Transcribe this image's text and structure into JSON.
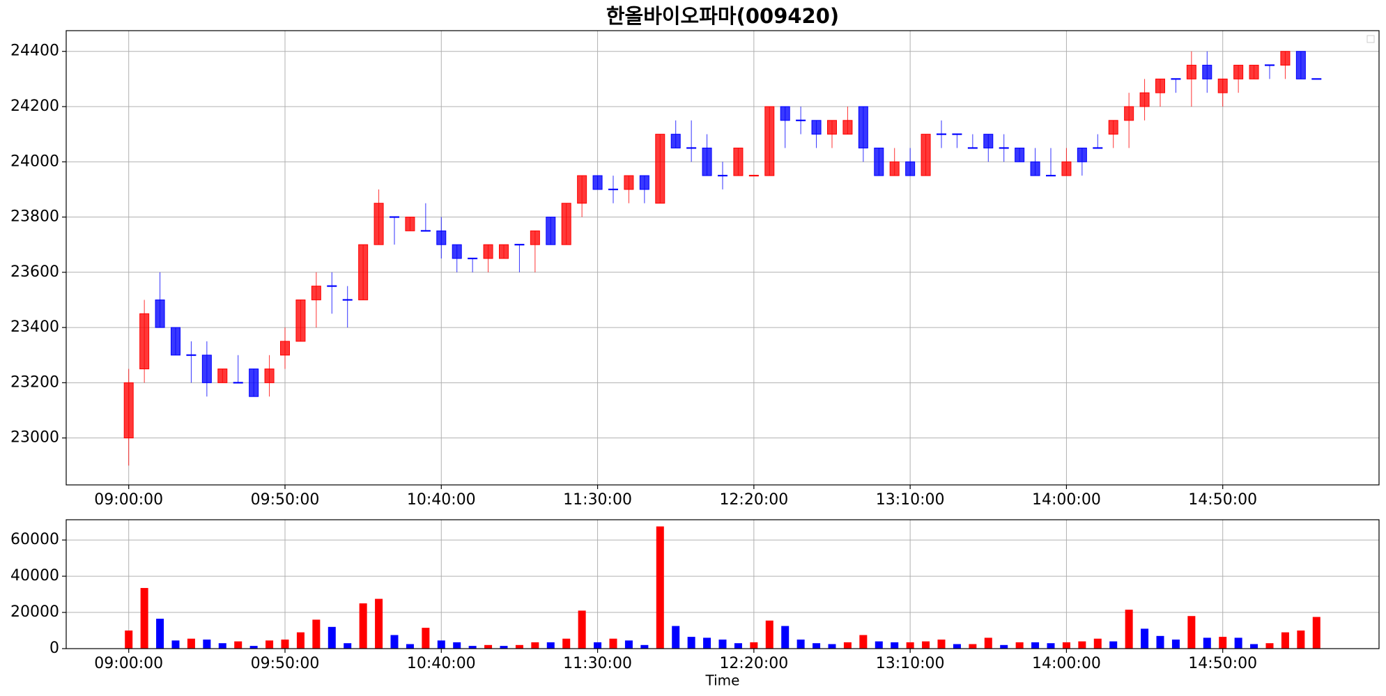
{
  "chart_data": [
    {
      "type": "candlestick",
      "title": "한올바이오파마(009420)",
      "x": [
        "09:00:00",
        "09:05:00",
        "09:10:00",
        "09:15:00",
        "09:20:00",
        "09:25:00",
        "09:30:00",
        "09:35:00",
        "09:40:00",
        "09:45:00",
        "09:50:00",
        "09:55:00",
        "10:00:00",
        "10:05:00",
        "10:10:00",
        "10:15:00",
        "10:20:00",
        "10:25:00",
        "10:30:00",
        "10:35:00",
        "10:40:00",
        "10:45:00",
        "10:50:00",
        "10:55:00",
        "11:00:00",
        "11:05:00",
        "11:10:00",
        "11:15:00",
        "11:20:00",
        "11:25:00",
        "11:30:00",
        "11:35:00",
        "11:40:00",
        "11:45:00",
        "11:50:00",
        "11:55:00",
        "12:00:00",
        "12:05:00",
        "12:10:00",
        "12:15:00",
        "12:20:00",
        "12:25:00",
        "12:30:00",
        "12:35:00",
        "12:40:00",
        "12:45:00",
        "12:50:00",
        "12:55:00",
        "13:00:00",
        "13:05:00",
        "13:10:00",
        "13:15:00",
        "13:20:00",
        "13:25:00",
        "13:30:00",
        "13:35:00",
        "13:40:00",
        "13:45:00",
        "13:50:00",
        "13:55:00",
        "14:00:00",
        "14:05:00",
        "14:10:00",
        "14:15:00",
        "14:20:00",
        "14:25:00",
        "14:30:00",
        "14:35:00",
        "14:40:00",
        "14:45:00",
        "14:50:00",
        "14:55:00",
        "15:00:00",
        "15:05:00",
        "15:10:00",
        "15:15:00",
        "15:20:00"
      ],
      "open": [
        23000,
        23250,
        23500,
        23400,
        23300,
        23300,
        23200,
        23200,
        23250,
        23200,
        23300,
        23350,
        23500,
        23550,
        23500,
        23500,
        23700,
        23800,
        23750,
        23750,
        23750,
        23700,
        23650,
        23650,
        23650,
        23700,
        23700,
        23800,
        23700,
        23850,
        23950,
        23900,
        23900,
        23950,
        23850,
        24100,
        24050,
        24050,
        23950,
        23950,
        23950,
        23950,
        24200,
        24150,
        24150,
        24100,
        24100,
        24200,
        24050,
        23950,
        24000,
        23950,
        24100,
        24100,
        24050,
        24100,
        24050,
        24050,
        24000,
        23950,
        23950,
        24050,
        24050,
        24100,
        24150,
        24200,
        24250,
        24300,
        24300,
        24350,
        24250,
        24300,
        24300,
        24350,
        24350,
        24400,
        24300
      ],
      "high": [
        23250,
        23500,
        23600,
        23400,
        23350,
        23350,
        23250,
        23300,
        23250,
        23300,
        23400,
        23500,
        23600,
        23600,
        23550,
        23700,
        23900,
        23800,
        23800,
        23850,
        23800,
        23700,
        23650,
        23700,
        23700,
        23700,
        23750,
        23800,
        23850,
        23950,
        23950,
        23950,
        23950,
        23950,
        24100,
        24150,
        24150,
        24100,
        24000,
        24050,
        23950,
        24200,
        24200,
        24200,
        24150,
        24150,
        24200,
        24200,
        24050,
        24050,
        24050,
        24100,
        24150,
        24100,
        24100,
        24100,
        24100,
        24050,
        24050,
        24050,
        24050,
        24050,
        24100,
        24150,
        24250,
        24300,
        24300,
        24300,
        24400,
        24400,
        24300,
        24350,
        24350,
        24350,
        24400,
        24400,
        24300
      ],
      "low": [
        22900,
        23200,
        23400,
        23300,
        23200,
        23150,
        23200,
        23200,
        23150,
        23150,
        23250,
        23350,
        23400,
        23450,
        23400,
        23500,
        23700,
        23700,
        23750,
        23750,
        23650,
        23600,
        23600,
        23600,
        23650,
        23600,
        23600,
        23700,
        23700,
        23800,
        23900,
        23850,
        23850,
        23850,
        23850,
        24050,
        24000,
        23950,
        23900,
        23950,
        23950,
        23950,
        24050,
        24100,
        24050,
        24050,
        24100,
        24000,
        23950,
        23950,
        23950,
        23950,
        24050,
        24050,
        24050,
        24000,
        24000,
        24000,
        23950,
        23950,
        23950,
        23950,
        24050,
        24050,
        24050,
        24150,
        24200,
        24250,
        24200,
        24250,
        24200,
        24250,
        24300,
        24300,
        24300,
        24300,
        24300
      ],
      "close": [
        23200,
        23450,
        23400,
        23300,
        23300,
        23200,
        23250,
        23200,
        23150,
        23250,
        23350,
        23500,
        23550,
        23550,
        23500,
        23700,
        23850,
        23800,
        23800,
        23750,
        23700,
        23650,
        23650,
        23700,
        23700,
        23700,
        23750,
        23700,
        23850,
        23950,
        23900,
        23900,
        23950,
        23900,
        24100,
        24050,
        24050,
        23950,
        23950,
        24050,
        23950,
        24200,
        24150,
        24150,
        24100,
        24150,
        24150,
        24050,
        23950,
        24000,
        23950,
        24100,
        24100,
        24100,
        24050,
        24050,
        24050,
        24000,
        23950,
        23950,
        24000,
        24000,
        24050,
        24150,
        24200,
        24250,
        24300,
        24300,
        24350,
        24300,
        24300,
        24350,
        24350,
        24350,
        24400,
        24300,
        24300
      ],
      "colors": [
        "red",
        "red",
        "blue",
        "blue",
        "blue",
        "blue",
        "red",
        "blue",
        "blue",
        "red",
        "red",
        "red",
        "red",
        "blue",
        "blue",
        "red",
        "red",
        "blue",
        "red",
        "blue",
        "blue",
        "blue",
        "blue",
        "red",
        "red",
        "blue",
        "red",
        "blue",
        "red",
        "red",
        "blue",
        "blue",
        "red",
        "blue",
        "red",
        "blue",
        "blue",
        "blue",
        "blue",
        "red",
        "red",
        "red",
        "blue",
        "blue",
        "blue",
        "red",
        "red",
        "blue",
        "blue",
        "red",
        "blue",
        "red",
        "blue",
        "blue",
        "blue",
        "blue",
        "blue",
        "blue",
        "blue",
        "blue",
        "red",
        "blue",
        "blue",
        "red",
        "red",
        "red",
        "red",
        "blue",
        "red",
        "blue",
        "red",
        "red",
        "red",
        "blue",
        "red",
        "blue",
        "blue"
      ],
      "xlim": [
        "08:40:00",
        "15:40:00"
      ],
      "xticks": [
        "09:00:00",
        "09:50:00",
        "10:40:00",
        "11:30:00",
        "12:20:00",
        "13:10:00",
        "14:00:00",
        "14:50:00"
      ],
      "ylim": [
        22830,
        24475
      ],
      "yticks": [
        23000,
        23200,
        23400,
        23600,
        23800,
        24000,
        24200,
        24400
      ],
      "grid": true
    },
    {
      "type": "bar",
      "xlabel": "Time",
      "x": [
        "09:00:00",
        "09:05:00",
        "09:10:00",
        "09:15:00",
        "09:20:00",
        "09:25:00",
        "09:30:00",
        "09:35:00",
        "09:40:00",
        "09:45:00",
        "09:50:00",
        "09:55:00",
        "10:00:00",
        "10:05:00",
        "10:10:00",
        "10:15:00",
        "10:20:00",
        "10:25:00",
        "10:30:00",
        "10:35:00",
        "10:40:00",
        "10:45:00",
        "10:50:00",
        "10:55:00",
        "11:00:00",
        "11:05:00",
        "11:10:00",
        "11:15:00",
        "11:20:00",
        "11:25:00",
        "11:30:00",
        "11:35:00",
        "11:40:00",
        "11:45:00",
        "11:50:00",
        "11:55:00",
        "12:00:00",
        "12:05:00",
        "12:10:00",
        "12:15:00",
        "12:20:00",
        "12:25:00",
        "12:30:00",
        "12:35:00",
        "12:40:00",
        "12:45:00",
        "12:50:00",
        "12:55:00",
        "13:00:00",
        "13:05:00",
        "13:10:00",
        "13:15:00",
        "13:20:00",
        "13:25:00",
        "13:30:00",
        "13:35:00",
        "13:40:00",
        "13:45:00",
        "13:50:00",
        "13:55:00",
        "14:00:00",
        "14:05:00",
        "14:10:00",
        "14:15:00",
        "14:20:00",
        "14:25:00",
        "14:30:00",
        "14:35:00",
        "14:40:00",
        "14:45:00",
        "14:50:00",
        "14:55:00",
        "15:00:00",
        "15:05:00",
        "15:10:00",
        "15:15:00",
        "15:20:00"
      ],
      "values": [
        10000,
        33500,
        16500,
        4500,
        5500,
        5000,
        3000,
        4000,
        1500,
        4500,
        5000,
        9000,
        16000,
        12000,
        3000,
        25000,
        27500,
        7500,
        2500,
        11500,
        4500,
        3500,
        1500,
        2000,
        1500,
        2000,
        3500,
        3500,
        5500,
        21000,
        3500,
        5500,
        4500,
        2000,
        67500,
        12500,
        6500,
        6000,
        5000,
        3000,
        3500,
        15500,
        12500,
        5000,
        3000,
        2500,
        3500,
        7500,
        4000,
        3500,
        3500,
        4000,
        5000,
        2500,
        2500,
        6000,
        2000,
        3500,
        3500,
        3000,
        3500,
        4000,
        5500,
        4000,
        21500,
        11000,
        7000,
        5000,
        18000,
        6000,
        6500,
        6000,
        2500,
        3000,
        9000,
        10000,
        17500
      ],
      "colors": [
        "red",
        "red",
        "blue",
        "blue",
        "red",
        "blue",
        "blue",
        "red",
        "blue",
        "red",
        "red",
        "red",
        "red",
        "blue",
        "blue",
        "red",
        "red",
        "blue",
        "blue",
        "red",
        "blue",
        "blue",
        "blue",
        "red",
        "blue",
        "red",
        "red",
        "blue",
        "red",
        "red",
        "blue",
        "red",
        "blue",
        "blue",
        "red",
        "blue",
        "blue",
        "blue",
        "blue",
        "blue",
        "red",
        "red",
        "blue",
        "blue",
        "blue",
        "blue",
        "red",
        "red",
        "blue",
        "blue",
        "red",
        "red",
        "red",
        "blue",
        "red",
        "red",
        "blue",
        "red",
        "blue",
        "blue",
        "red",
        "red",
        "red",
        "blue",
        "red",
        "blue",
        "blue",
        "blue",
        "red",
        "blue",
        "red",
        "blue",
        "blue",
        "red",
        "red",
        "red",
        "red"
      ],
      "xlim": [
        "08:40:00",
        "15:40:00"
      ],
      "xticks": [
        "09:00:00",
        "09:50:00",
        "10:40:00",
        "11:30:00",
        "12:20:00",
        "13:10:00",
        "14:00:00",
        "14:50:00"
      ],
      "ylim": [
        0,
        71200
      ],
      "yticks": [
        0,
        20000,
        40000,
        60000
      ],
      "grid": true
    }
  ]
}
